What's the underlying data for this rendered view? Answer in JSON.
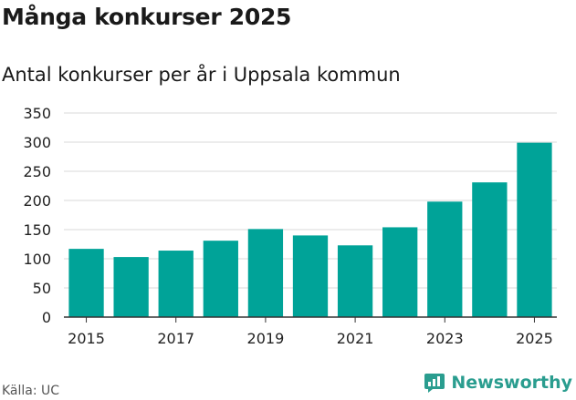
{
  "header": {
    "title": "Många konkurser 2025",
    "subtitle": "Antal konkurser per år i Uppsala kommun"
  },
  "footer": {
    "source": "Källa: UC",
    "brand": "Newsworthy"
  },
  "colors": {
    "bar": "#00a398",
    "grid": "#d9d9d9",
    "axis": "#333333",
    "brand": "#2a9d8f"
  },
  "chart_data": {
    "type": "bar",
    "title": "Många konkurser 2025",
    "subtitle": "Antal konkurser per år i Uppsala kommun",
    "xlabel": "",
    "ylabel": "",
    "categories": [
      "2015",
      "2016",
      "2017",
      "2018",
      "2019",
      "2020",
      "2021",
      "2022",
      "2023",
      "2024",
      "2025"
    ],
    "values": [
      117,
      103,
      114,
      131,
      151,
      140,
      123,
      154,
      198,
      231,
      299
    ],
    "x_tick_labels": [
      "2015",
      "2017",
      "2019",
      "2021",
      "2023",
      "2025"
    ],
    "y_ticks": [
      0,
      50,
      100,
      150,
      200,
      250,
      300,
      350
    ],
    "ylim": [
      0,
      350
    ],
    "grid": true,
    "legend": "none"
  }
}
